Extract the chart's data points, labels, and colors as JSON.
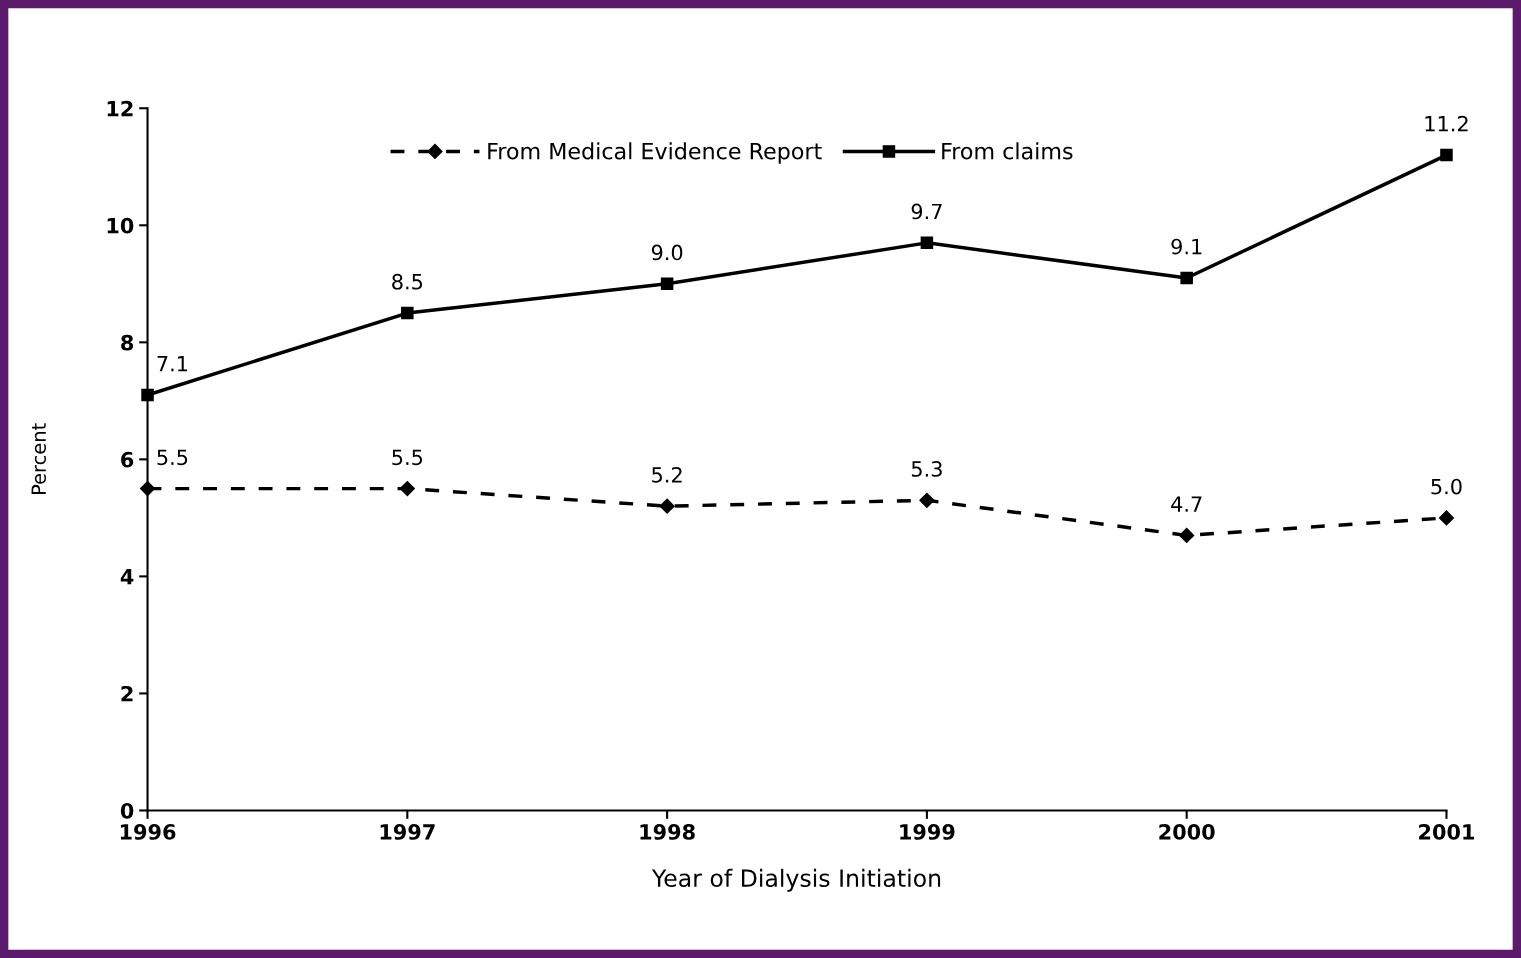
{
  "chart_data": {
    "type": "line",
    "xlabel": "Year of Dialysis Initiation",
    "ylabel": "Percent",
    "categories": [
      "1996",
      "1997",
      "1998",
      "1999",
      "2000",
      "2001"
    ],
    "series": [
      {
        "name": "From Medical Evidence Report",
        "color": "#000000",
        "marker": "diamond",
        "line_style": "dashed",
        "values": [
          5.5,
          5.5,
          5.2,
          5.3,
          4.7,
          5.0
        ],
        "value_labels": [
          "5.5",
          "5.5",
          "5.2",
          "5.3",
          "4.7",
          "5.0"
        ]
      },
      {
        "name": "From claims",
        "color": "#000000",
        "marker": "square",
        "line_style": "solid",
        "values": [
          7.1,
          8.5,
          9.0,
          9.7,
          9.1,
          11.2
        ],
        "value_labels": [
          "7.1",
          "8.5",
          "9.0",
          "9.7",
          "9.1",
          "11.2"
        ]
      }
    ],
    "ylim": [
      0,
      12
    ],
    "yticks": [
      0,
      2,
      4,
      6,
      8,
      10,
      12
    ],
    "grid": false,
    "legend": "top"
  }
}
